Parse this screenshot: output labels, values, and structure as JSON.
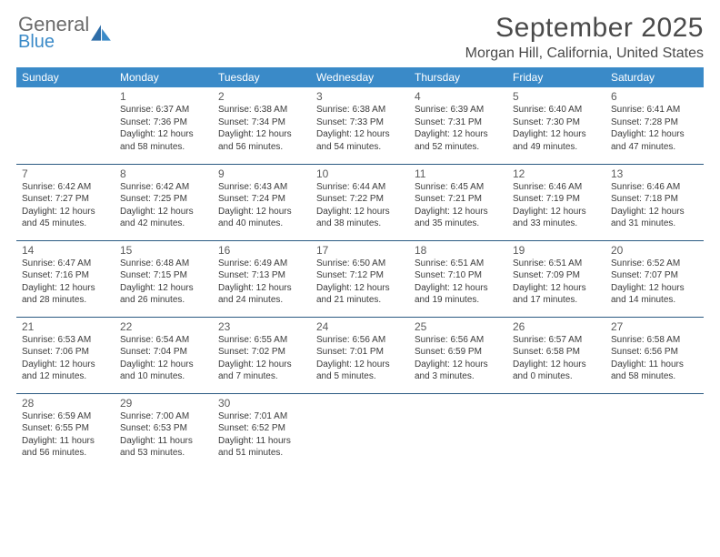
{
  "brand": {
    "name_top": "General",
    "name_bottom": "Blue"
  },
  "title": "September 2025",
  "location": "Morgan Hill, California, United States",
  "colors": {
    "header_bg": "#3a8ac8",
    "header_text": "#ffffff",
    "border": "#2b5a82",
    "title_text": "#4a4a4a",
    "body_text": "#3a3a3a",
    "page_bg": "#ffffff",
    "logo_blue": "#3a8ac8",
    "logo_gray": "#6b6b6b"
  },
  "typography": {
    "title_fontsize": 30,
    "location_fontsize": 16,
    "dayheader_fontsize": 12,
    "daynum_fontsize": 12,
    "info_fontsize": 10
  },
  "day_headers": [
    "Sunday",
    "Monday",
    "Tuesday",
    "Wednesday",
    "Thursday",
    "Friday",
    "Saturday"
  ],
  "weeks": [
    [
      null,
      {
        "n": "1",
        "sr": "Sunrise: 6:37 AM",
        "ss": "Sunset: 7:36 PM",
        "dl": "Daylight: 12 hours and 58 minutes."
      },
      {
        "n": "2",
        "sr": "Sunrise: 6:38 AM",
        "ss": "Sunset: 7:34 PM",
        "dl": "Daylight: 12 hours and 56 minutes."
      },
      {
        "n": "3",
        "sr": "Sunrise: 6:38 AM",
        "ss": "Sunset: 7:33 PM",
        "dl": "Daylight: 12 hours and 54 minutes."
      },
      {
        "n": "4",
        "sr": "Sunrise: 6:39 AM",
        "ss": "Sunset: 7:31 PM",
        "dl": "Daylight: 12 hours and 52 minutes."
      },
      {
        "n": "5",
        "sr": "Sunrise: 6:40 AM",
        "ss": "Sunset: 7:30 PM",
        "dl": "Daylight: 12 hours and 49 minutes."
      },
      {
        "n": "6",
        "sr": "Sunrise: 6:41 AM",
        "ss": "Sunset: 7:28 PM",
        "dl": "Daylight: 12 hours and 47 minutes."
      }
    ],
    [
      {
        "n": "7",
        "sr": "Sunrise: 6:42 AM",
        "ss": "Sunset: 7:27 PM",
        "dl": "Daylight: 12 hours and 45 minutes."
      },
      {
        "n": "8",
        "sr": "Sunrise: 6:42 AM",
        "ss": "Sunset: 7:25 PM",
        "dl": "Daylight: 12 hours and 42 minutes."
      },
      {
        "n": "9",
        "sr": "Sunrise: 6:43 AM",
        "ss": "Sunset: 7:24 PM",
        "dl": "Daylight: 12 hours and 40 minutes."
      },
      {
        "n": "10",
        "sr": "Sunrise: 6:44 AM",
        "ss": "Sunset: 7:22 PM",
        "dl": "Daylight: 12 hours and 38 minutes."
      },
      {
        "n": "11",
        "sr": "Sunrise: 6:45 AM",
        "ss": "Sunset: 7:21 PM",
        "dl": "Daylight: 12 hours and 35 minutes."
      },
      {
        "n": "12",
        "sr": "Sunrise: 6:46 AM",
        "ss": "Sunset: 7:19 PM",
        "dl": "Daylight: 12 hours and 33 minutes."
      },
      {
        "n": "13",
        "sr": "Sunrise: 6:46 AM",
        "ss": "Sunset: 7:18 PM",
        "dl": "Daylight: 12 hours and 31 minutes."
      }
    ],
    [
      {
        "n": "14",
        "sr": "Sunrise: 6:47 AM",
        "ss": "Sunset: 7:16 PM",
        "dl": "Daylight: 12 hours and 28 minutes."
      },
      {
        "n": "15",
        "sr": "Sunrise: 6:48 AM",
        "ss": "Sunset: 7:15 PM",
        "dl": "Daylight: 12 hours and 26 minutes."
      },
      {
        "n": "16",
        "sr": "Sunrise: 6:49 AM",
        "ss": "Sunset: 7:13 PM",
        "dl": "Daylight: 12 hours and 24 minutes."
      },
      {
        "n": "17",
        "sr": "Sunrise: 6:50 AM",
        "ss": "Sunset: 7:12 PM",
        "dl": "Daylight: 12 hours and 21 minutes."
      },
      {
        "n": "18",
        "sr": "Sunrise: 6:51 AM",
        "ss": "Sunset: 7:10 PM",
        "dl": "Daylight: 12 hours and 19 minutes."
      },
      {
        "n": "19",
        "sr": "Sunrise: 6:51 AM",
        "ss": "Sunset: 7:09 PM",
        "dl": "Daylight: 12 hours and 17 minutes."
      },
      {
        "n": "20",
        "sr": "Sunrise: 6:52 AM",
        "ss": "Sunset: 7:07 PM",
        "dl": "Daylight: 12 hours and 14 minutes."
      }
    ],
    [
      {
        "n": "21",
        "sr": "Sunrise: 6:53 AM",
        "ss": "Sunset: 7:06 PM",
        "dl": "Daylight: 12 hours and 12 minutes."
      },
      {
        "n": "22",
        "sr": "Sunrise: 6:54 AM",
        "ss": "Sunset: 7:04 PM",
        "dl": "Daylight: 12 hours and 10 minutes."
      },
      {
        "n": "23",
        "sr": "Sunrise: 6:55 AM",
        "ss": "Sunset: 7:02 PM",
        "dl": "Daylight: 12 hours and 7 minutes."
      },
      {
        "n": "24",
        "sr": "Sunrise: 6:56 AM",
        "ss": "Sunset: 7:01 PM",
        "dl": "Daylight: 12 hours and 5 minutes."
      },
      {
        "n": "25",
        "sr": "Sunrise: 6:56 AM",
        "ss": "Sunset: 6:59 PM",
        "dl": "Daylight: 12 hours and 3 minutes."
      },
      {
        "n": "26",
        "sr": "Sunrise: 6:57 AM",
        "ss": "Sunset: 6:58 PM",
        "dl": "Daylight: 12 hours and 0 minutes."
      },
      {
        "n": "27",
        "sr": "Sunrise: 6:58 AM",
        "ss": "Sunset: 6:56 PM",
        "dl": "Daylight: 11 hours and 58 minutes."
      }
    ],
    [
      {
        "n": "28",
        "sr": "Sunrise: 6:59 AM",
        "ss": "Sunset: 6:55 PM",
        "dl": "Daylight: 11 hours and 56 minutes."
      },
      {
        "n": "29",
        "sr": "Sunrise: 7:00 AM",
        "ss": "Sunset: 6:53 PM",
        "dl": "Daylight: 11 hours and 53 minutes."
      },
      {
        "n": "30",
        "sr": "Sunrise: 7:01 AM",
        "ss": "Sunset: 6:52 PM",
        "dl": "Daylight: 11 hours and 51 minutes."
      },
      null,
      null,
      null,
      null
    ]
  ]
}
